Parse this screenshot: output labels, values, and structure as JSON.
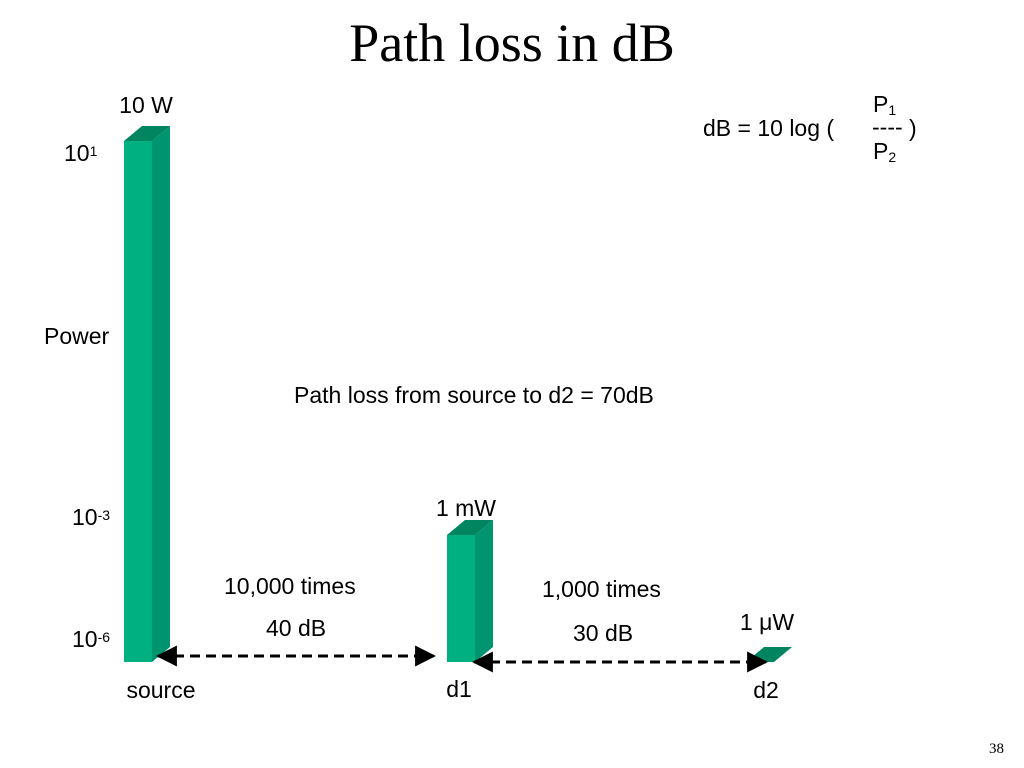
{
  "slide": {
    "title": "Path loss in dB",
    "page_number": "38"
  },
  "formula": {
    "lhs": "dB = 10 log (",
    "numerator": "P",
    "numerator_sub": "1",
    "fraction_bar": "----",
    "denominator": "P",
    "denominator_sub": "2",
    "rhs": ")"
  },
  "annotations": {
    "summary": "Path loss from source to d2 = 70dB",
    "hop1_ratio": "10,000 times",
    "hop1_db": "40 dB",
    "hop2_ratio": "1,000 times",
    "hop2_db": "30 dB"
  },
  "axis": {
    "ylabel": "Power",
    "ticks": [
      {
        "base": "10",
        "exp": "1"
      },
      {
        "base": "10",
        "exp": "-3"
      },
      {
        "base": "10",
        "exp": "-6"
      }
    ]
  },
  "chart_data": {
    "type": "bar",
    "categories": [
      "source",
      "d1",
      "d2"
    ],
    "values_watts": [
      10,
      0.001,
      1e-06
    ],
    "value_labels": [
      "10 W",
      "1 mW",
      "1 μW"
    ],
    "ylabel": "Power",
    "yscale": "log",
    "colors": {
      "front": "#00b080",
      "side": "#009470",
      "top": "#008560"
    }
  }
}
